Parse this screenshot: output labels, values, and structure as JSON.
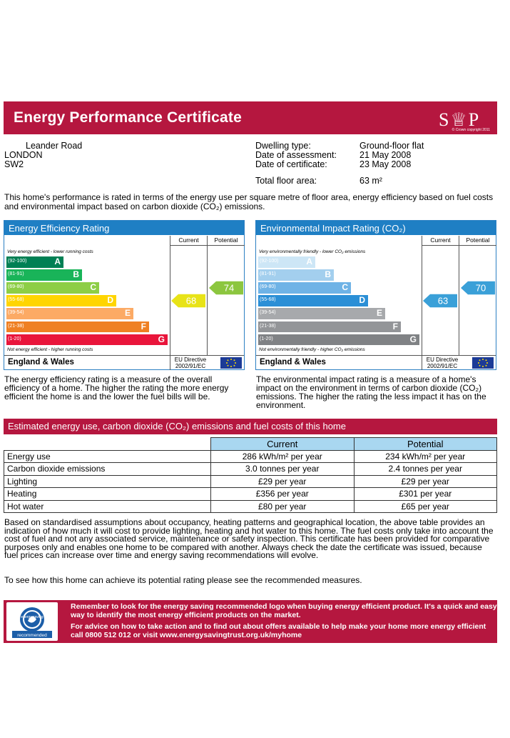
{
  "header": {
    "title": "Energy Performance Certificate",
    "logo_text": "S♕P",
    "logo_copyright": "© Crown copyright 2011"
  },
  "address": {
    "line1": "Leander Road",
    "line2": "LONDON",
    "line3": "SW2"
  },
  "dwelling": {
    "type_label": "Dwelling type:",
    "type_value": "Ground-floor flat",
    "assessment_label": "Date of assessment:",
    "assessment_value": "21 May 2008",
    "certificate_label": "Date of certificate:",
    "certificate_value": "23 May 2008",
    "floor_label": "Total floor area:",
    "floor_value": "63 m²"
  },
  "intro": "This home's performance is rated in terms of the energy use per square metre of floor area, energy efficiency based on fuel costs and environmental impact based on carbon dioxide (CO₂) emissions.",
  "efficiency": {
    "title": "Energy Efficiency Rating",
    "current_label": "Current",
    "potential_label": "Potential",
    "top_hint": "Very energy efficient - lower running costs",
    "bottom_hint": "Not energy efficient - higher running costs",
    "region": "England & Wales",
    "directive": "EU Directive 2002/91/EC",
    "current": 68,
    "potential": 74,
    "current_color": "#e8e317",
    "potential_color": "#8cc63f",
    "bands": [
      {
        "range": "(92-100)",
        "letter": "A",
        "color": "#008054"
      },
      {
        "range": "(81-91)",
        "letter": "B",
        "color": "#19b459"
      },
      {
        "range": "(69-80)",
        "letter": "C",
        "color": "#8dce46"
      },
      {
        "range": "(55-68)",
        "letter": "D",
        "color": "#ffd500"
      },
      {
        "range": "(39-54)",
        "letter": "E",
        "color": "#fcaa65"
      },
      {
        "range": "(21-38)",
        "letter": "F",
        "color": "#ef8023"
      },
      {
        "range": "(1-20)",
        "letter": "G",
        "color": "#e9153b"
      }
    ]
  },
  "environmental": {
    "title": "Environmental Impact Rating (CO₂)",
    "current_label": "Current",
    "potential_label": "Potential",
    "top_hint": "Very environmentally friendly - lower CO₂ emissions",
    "bottom_hint": "Not environmentally friendly - higher CO₂ emissions",
    "region": "England & Wales",
    "directive": "EU Directive 2002/91/EC",
    "current": 63,
    "potential": 70,
    "current_color": "#3aa0d8",
    "potential_color": "#3aa0d8",
    "bands": [
      {
        "range": "(92-100)",
        "letter": "A",
        "color": "#cde6f6"
      },
      {
        "range": "(81-91)",
        "letter": "B",
        "color": "#a3cfee"
      },
      {
        "range": "(69-80)",
        "letter": "C",
        "color": "#6fb3e6"
      },
      {
        "range": "(55-68)",
        "letter": "D",
        "color": "#2b8fd6"
      },
      {
        "range": "(39-54)",
        "letter": "E",
        "color": "#a7a9ac"
      },
      {
        "range": "(21-38)",
        "letter": "F",
        "color": "#939598"
      },
      {
        "range": "(1-20)",
        "letter": "G",
        "color": "#808285"
      }
    ]
  },
  "desc_efficiency": "The energy efficiency rating is a measure of the overall efficiency of a home. The higher the rating the more energy efficient the home is and the lower the fuel bills will be.",
  "desc_environment": "The environmental impact rating is a measure of a home's impact on the environment in terms of carbon dioxide (CO₂) emissions. The higher the rating the less impact it has on the environment.",
  "estimate": {
    "title": "Estimated energy use, carbon dioxide (CO₂) emissions and fuel costs of this home",
    "col_current": "Current",
    "col_potential": "Potential",
    "rows": [
      {
        "label": "Energy use",
        "current": "286 kWh/m² per year",
        "potential": "234 kWh/m² per year"
      },
      {
        "label": "Carbon dioxide emissions",
        "current": "3.0 tonnes per year",
        "potential": "2.4 tonnes per year"
      },
      {
        "label": "Lighting",
        "current": "£29 per year",
        "potential": "£29 per year"
      },
      {
        "label": "Heating",
        "current": "£356 per year",
        "potential": "£301 per year"
      },
      {
        "label": "Hot water",
        "current": "£80 per year",
        "potential": "£65 per year"
      }
    ]
  },
  "para1": "Based on standardised assumptions about occupancy, heating patterns and geographical location, the above table provides an indication of how much it will cost to provide lighting, heating and hot water to this home. The fuel costs only take into account the cost of fuel and not any associated service, maintenance or safety inspection. This certificate has been provided for comparative purposes only and enables one home to be compared with another. Always check the date the certificate was issued, because fuel prices can increase over time and energy saving recommendations will evolve.",
  "para2": "To see how this home can achieve its potential rating please see the recommended measures.",
  "banner": {
    "line1": "Remember to look for the energy saving recommended logo when buying energy efficient product. It's a quick and easy way to identify the most energy efficient products on the market.",
    "line2": "For advice on how to take action and to find out about offers available to help make your home more energy efficient call 0800 512 012 or visit www.energysavingtrust.org.uk/myhome",
    "logo_top": "energy saving",
    "logo_bottom": "recommended"
  }
}
